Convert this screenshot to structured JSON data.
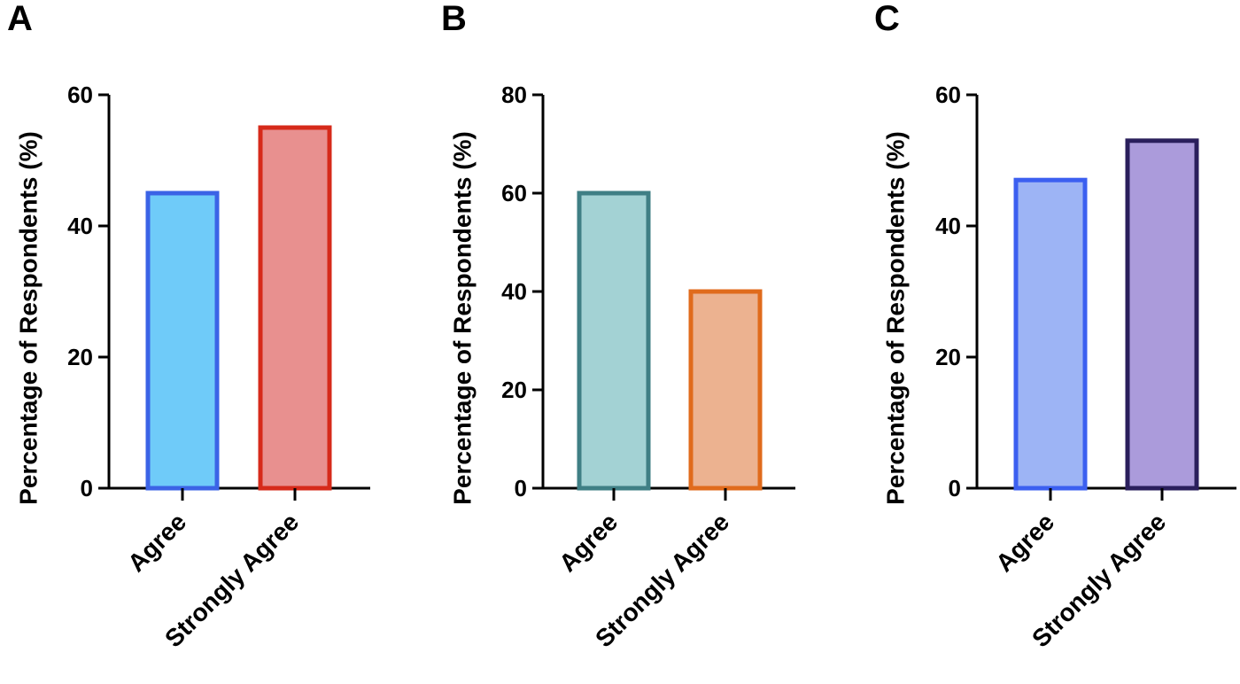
{
  "chart_data": [
    {
      "panel": "A",
      "type": "bar",
      "ylabel": "Percentage of Respondents (%)",
      "categories": [
        "Agree",
        "Strongly Agree"
      ],
      "values": [
        45,
        55
      ],
      "ylim": [
        0,
        60
      ],
      "yticks": [
        "0",
        "20",
        "40",
        "60"
      ],
      "fills": [
        "#6fcbf9",
        "#e8908f"
      ],
      "strokes": [
        "#3b63e6",
        "#d62a1a"
      ],
      "grid": false,
      "legend": "none"
    },
    {
      "panel": "B",
      "type": "bar",
      "ylabel": "Percentage of Respondents (%)",
      "categories": [
        "Agree",
        "Strongly Agree"
      ],
      "values": [
        60,
        40
      ],
      "ylim": [
        0,
        80
      ],
      "yticks": [
        "0",
        "20",
        "40",
        "60",
        "80"
      ],
      "fills": [
        "#a3d2d4",
        "#ecb290"
      ],
      "strokes": [
        "#3f7f85",
        "#e06b1c"
      ],
      "grid": false,
      "legend": "none"
    },
    {
      "panel": "C",
      "type": "bar",
      "ylabel": "Percentage of Respondents (%)",
      "categories": [
        "Agree",
        "Strongly Agree"
      ],
      "values": [
        47,
        53
      ],
      "ylim": [
        0,
        60
      ],
      "yticks": [
        "0",
        "20",
        "40",
        "60"
      ],
      "fills": [
        "#9db4f5",
        "#ab9bdb"
      ],
      "strokes": [
        "#3b5ff0",
        "#2a1f5c"
      ],
      "grid": false,
      "legend": "none"
    }
  ]
}
